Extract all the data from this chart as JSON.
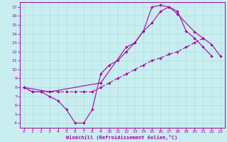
{
  "bg_color": "#c8eef0",
  "line_color": "#aa00aa",
  "grid_color": "#b0dde0",
  "xlabel": "Windchill (Refroidissement éolien,°C)",
  "xlim": [
    -0.5,
    23.5
  ],
  "ylim": [
    3.5,
    17.5
  ],
  "xticks": [
    0,
    1,
    2,
    3,
    4,
    5,
    6,
    7,
    8,
    9,
    10,
    11,
    12,
    13,
    14,
    15,
    16,
    17,
    18,
    19,
    20,
    21,
    22,
    23
  ],
  "yticks": [
    4,
    5,
    6,
    7,
    8,
    9,
    10,
    11,
    12,
    13,
    14,
    15,
    16,
    17
  ],
  "line1_x": [
    0,
    1,
    2,
    3,
    4,
    5,
    6,
    7,
    8,
    9,
    10,
    11,
    12,
    13,
    14,
    15,
    16,
    17,
    18,
    19,
    20,
    21,
    22,
    23
  ],
  "line1_y": [
    8,
    7.5,
    7.5,
    7.0,
    6.5,
    5.5,
    4.0,
    4.0,
    5.5,
    9.5,
    10.5,
    11.0,
    12.0,
    13.0,
    14.3,
    17.0,
    17.2,
    17.0,
    16.5,
    14.3,
    13.5,
    12.5,
    11.5,
    null
  ],
  "line2_x": [
    0,
    1,
    2,
    3,
    4,
    5,
    6,
    7,
    8,
    9,
    10,
    11,
    12,
    13,
    14,
    15,
    16,
    17,
    18,
    19,
    20,
    21,
    22,
    23
  ],
  "line2_y": [
    8,
    7.5,
    7.5,
    7.5,
    7.5,
    7.5,
    7.5,
    7.5,
    7.5,
    8.0,
    8.5,
    9.0,
    9.5,
    10.0,
    10.5,
    11.0,
    11.3,
    11.7,
    12.0,
    12.5,
    13.0,
    13.5,
    null,
    null
  ],
  "line3_x": [
    0,
    3,
    9,
    12,
    13,
    14,
    15,
    16,
    17,
    18,
    20,
    21,
    22,
    23
  ],
  "line3_y": [
    8,
    7.5,
    8.5,
    12.5,
    13.0,
    14.3,
    15.2,
    16.5,
    17.0,
    16.2,
    14.2,
    13.5,
    12.8,
    11.5
  ]
}
